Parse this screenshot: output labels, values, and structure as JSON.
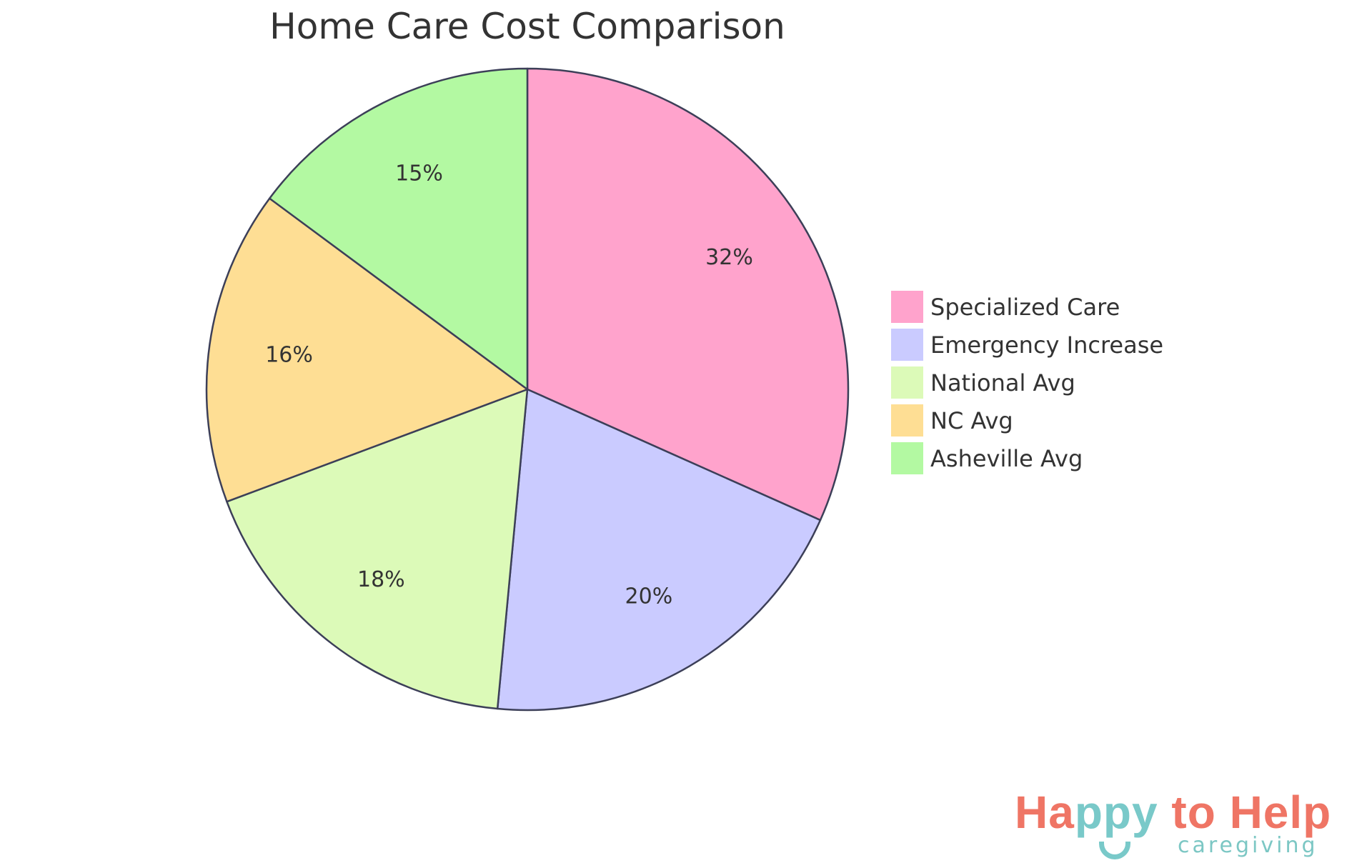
{
  "chart_data": {
    "type": "pie",
    "title": "Home Care Cost Comparison",
    "categories": [
      "Specialized Care",
      "Emergency Increase",
      "National Avg",
      "NC Avg",
      "Asheville Avg"
    ],
    "values": [
      32,
      20,
      18,
      16,
      15
    ],
    "labels": [
      "32%",
      "20%",
      "18%",
      "16%",
      "15%"
    ],
    "colors": [
      "#ffa3cc",
      "#cacbff",
      "#dcfab8",
      "#fede94",
      "#b3f9a2"
    ],
    "stroke_color": "#3c3f58",
    "start": "top",
    "direction": "clockwise",
    "legend_position": "right"
  },
  "logo": {
    "text_parts": [
      "Ha",
      "ppy",
      " to Help"
    ],
    "subtitle": "caregiving",
    "colors": {
      "coral": "#ef7565",
      "teal": "#79c9c9"
    }
  }
}
